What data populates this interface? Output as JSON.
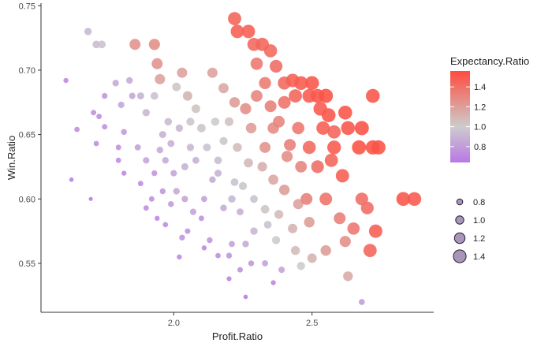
{
  "chart_data": {
    "type": "scatter",
    "xlabel": "Profit.Ratio",
    "ylabel": "Win.Ratio",
    "xlim": [
      1.52,
      2.94
    ],
    "ylim": [
      0.512,
      0.752
    ],
    "x_ticks": [
      2.0,
      2.5
    ],
    "x_tick_labels": [
      "2.0",
      "2.5"
    ],
    "y_ticks": [
      0.55,
      0.6,
      0.65,
      0.7,
      0.75
    ],
    "y_tick_labels": [
      "0.55",
      "0.60",
      "0.65",
      "0.70",
      "0.75"
    ],
    "grid": false,
    "color_legend": {
      "title": "Expectancy.Ratio",
      "range": [
        0.64,
        1.56
      ],
      "ticks": [
        0.8,
        1.0,
        1.2,
        1.4
      ],
      "tick_labels": [
        "0.8",
        "1.0",
        "1.2",
        "1.4"
      ],
      "colors": {
        "low": "#BA77E6",
        "mid": "#CCCCCC",
        "high": "#FF4B3E"
      },
      "placement": "right"
    },
    "size_legend": {
      "values": [
        0.8,
        1.0,
        1.2,
        1.4
      ],
      "labels": [
        "0.8",
        "1.0",
        "1.2",
        "1.4"
      ],
      "placement": "right"
    },
    "points": [
      [
        1.61,
        0.692,
        0.72
      ],
      [
        1.63,
        0.615,
        0.66
      ],
      [
        1.65,
        0.654,
        0.74
      ],
      [
        1.69,
        0.73,
        0.92
      ],
      [
        1.7,
        0.6,
        0.62
      ],
      [
        1.72,
        0.72,
        0.94
      ],
      [
        1.73,
        0.664,
        0.74
      ],
      [
        1.74,
        0.72,
        0.96
      ],
      [
        1.71,
        0.667,
        0.76
      ],
      [
        1.75,
        0.68,
        0.78
      ],
      [
        1.75,
        0.656,
        0.76
      ],
      [
        1.72,
        0.643,
        0.74
      ],
      [
        1.79,
        0.69,
        0.86
      ],
      [
        1.81,
        0.673,
        0.84
      ],
      [
        1.8,
        0.64,
        0.76
      ],
      [
        1.8,
        0.63,
        0.74
      ],
      [
        1.82,
        0.62,
        0.72
      ],
      [
        1.82,
        0.652,
        0.8
      ],
      [
        1.84,
        0.692,
        0.86
      ],
      [
        1.85,
        0.68,
        0.84
      ],
      [
        1.86,
        0.72,
        1.24
      ],
      [
        1.88,
        0.68,
        0.9
      ],
      [
        1.9,
        0.667,
        0.92
      ],
      [
        1.93,
        0.72,
        1.26
      ],
      [
        1.94,
        0.705,
        1.24
      ],
      [
        1.95,
        0.693,
        1.18
      ],
      [
        1.93,
        0.68,
        0.96
      ],
      [
        1.87,
        0.64,
        0.82
      ],
      [
        1.9,
        0.63,
        0.84
      ],
      [
        1.93,
        0.62,
        0.78
      ],
      [
        1.88,
        0.612,
        0.74
      ],
      [
        1.92,
        0.6,
        0.76
      ],
      [
        1.9,
        0.593,
        0.74
      ],
      [
        1.94,
        0.585,
        0.72
      ],
      [
        1.96,
        0.606,
        0.78
      ],
      [
        1.97,
        0.63,
        0.86
      ],
      [
        1.98,
        0.66,
        0.94
      ],
      [
        2.01,
        0.687,
        1.02
      ],
      [
        2.03,
        0.698,
        1.18
      ],
      [
        2.05,
        0.68,
        1.1
      ],
      [
        2.08,
        0.67,
        1.04
      ],
      [
        2.1,
        0.655,
        1.02
      ],
      [
        2.06,
        0.64,
        0.92
      ],
      [
        2.04,
        0.625,
        0.9
      ],
      [
        2.01,
        0.606,
        0.86
      ],
      [
        1.99,
        0.596,
        0.8
      ],
      [
        1.97,
        0.58,
        0.74
      ],
      [
        2.04,
        0.6,
        0.84
      ],
      [
        2.07,
        0.59,
        0.84
      ],
      [
        2.03,
        0.57,
        0.78
      ],
      [
        2.05,
        0.575,
        0.76
      ],
      [
        2.13,
        0.568,
        0.78
      ],
      [
        2.11,
        0.6,
        0.82
      ],
      [
        2.14,
        0.615,
        0.86
      ],
      [
        2.16,
        0.63,
        0.94
      ],
      [
        2.18,
        0.645,
        0.98
      ],
      [
        2.2,
        0.66,
        1.04
      ],
      [
        2.14,
        0.698,
        1.18
      ],
      [
        2.18,
        0.686,
        1.16
      ],
      [
        2.22,
        0.675,
        1.2
      ],
      [
        2.22,
        0.74,
        1.44
      ],
      [
        2.23,
        0.73,
        1.46
      ],
      [
        2.27,
        0.73,
        1.46
      ],
      [
        2.29,
        0.72,
        1.42
      ],
      [
        2.32,
        0.72,
        1.44
      ],
      [
        2.35,
        0.715,
        1.42
      ],
      [
        2.3,
        0.705,
        1.36
      ],
      [
        2.33,
        0.69,
        1.34
      ],
      [
        2.37,
        0.703,
        1.4
      ],
      [
        2.4,
        0.69,
        1.42
      ],
      [
        2.43,
        0.692,
        1.46
      ],
      [
        2.46,
        0.69,
        1.48
      ],
      [
        2.5,
        0.69,
        1.5
      ],
      [
        2.44,
        0.68,
        1.44
      ],
      [
        2.49,
        0.68,
        1.48
      ],
      [
        2.52,
        0.68,
        1.5
      ],
      [
        2.55,
        0.68,
        1.52
      ],
      [
        2.56,
        0.665,
        1.5
      ],
      [
        2.62,
        0.667,
        1.5
      ],
      [
        2.68,
        0.655,
        1.52
      ],
      [
        2.72,
        0.68,
        1.5
      ],
      [
        2.67,
        0.64,
        1.52
      ],
      [
        2.72,
        0.64,
        1.52
      ],
      [
        2.63,
        0.655,
        1.5
      ],
      [
        2.58,
        0.64,
        1.48
      ],
      [
        2.54,
        0.655,
        1.46
      ],
      [
        2.49,
        0.64,
        1.42
      ],
      [
        2.45,
        0.655,
        1.36
      ],
      [
        2.42,
        0.642,
        1.32
      ],
      [
        2.38,
        0.66,
        1.3
      ],
      [
        2.33,
        0.64,
        1.24
      ],
      [
        2.28,
        0.655,
        1.2
      ],
      [
        2.26,
        0.67,
        1.26
      ],
      [
        2.3,
        0.68,
        1.3
      ],
      [
        2.35,
        0.672,
        1.32
      ],
      [
        2.4,
        0.675,
        1.38
      ],
      [
        2.36,
        0.655,
        1.28
      ],
      [
        2.41,
        0.633,
        1.26
      ],
      [
        2.46,
        0.625,
        1.3
      ],
      [
        2.52,
        0.625,
        1.4
      ],
      [
        2.57,
        0.63,
        1.44
      ],
      [
        2.61,
        0.618,
        1.46
      ],
      [
        2.55,
        0.6,
        1.38
      ],
      [
        2.48,
        0.6,
        1.32
      ],
      [
        2.4,
        0.607,
        1.2
      ],
      [
        2.36,
        0.615,
        1.16
      ],
      [
        2.32,
        0.625,
        1.12
      ],
      [
        2.27,
        0.628,
        1.08
      ],
      [
        2.23,
        0.64,
        1.06
      ],
      [
        2.25,
        0.61,
        0.98
      ],
      [
        2.21,
        0.6,
        0.92
      ],
      [
        2.18,
        0.593,
        0.86
      ],
      [
        2.24,
        0.59,
        0.88
      ],
      [
        2.29,
        0.6,
        0.96
      ],
      [
        2.33,
        0.592,
        1.02
      ],
      [
        2.38,
        0.588,
        1.06
      ],
      [
        2.43,
        0.577,
        1.1
      ],
      [
        2.49,
        0.582,
        1.2
      ],
      [
        2.45,
        0.596,
        1.18
      ],
      [
        2.6,
        0.585,
        1.32
      ],
      [
        2.65,
        0.577,
        1.36
      ],
      [
        2.68,
        0.6,
        1.4
      ],
      [
        2.7,
        0.593,
        1.4
      ],
      [
        2.73,
        0.575,
        1.46
      ],
      [
        2.71,
        0.56,
        1.44
      ],
      [
        2.62,
        0.567,
        1.26
      ],
      [
        2.55,
        0.56,
        1.2
      ],
      [
        2.44,
        0.56,
        1.06
      ],
      [
        2.37,
        0.568,
        1.0
      ],
      [
        2.34,
        0.58,
        0.96
      ],
      [
        2.29,
        0.575,
        0.92
      ],
      [
        2.26,
        0.565,
        0.86
      ],
      [
        2.21,
        0.565,
        0.82
      ],
      [
        2.2,
        0.556,
        0.78
      ],
      [
        2.24,
        0.545,
        0.76
      ],
      [
        2.28,
        0.55,
        0.78
      ],
      [
        2.33,
        0.55,
        0.82
      ],
      [
        2.39,
        0.545,
        0.84
      ],
      [
        2.46,
        0.548,
        1.0
      ],
      [
        2.5,
        0.554,
        1.1
      ],
      [
        2.63,
        0.54,
        1.14
      ],
      [
        2.68,
        0.52,
        0.8
      ],
      [
        2.36,
        0.535,
        0.72
      ],
      [
        2.2,
        0.538,
        0.7
      ],
      [
        2.26,
        0.524,
        0.66
      ],
      [
        2.02,
        0.555,
        0.72
      ],
      [
        2.16,
        0.556,
        0.74
      ],
      [
        2.11,
        0.562,
        0.72
      ],
      [
        2.1,
        0.585,
        0.76
      ],
      [
        1.99,
        0.643,
        0.88
      ],
      [
        2.02,
        0.655,
        0.92
      ],
      [
        2.06,
        0.66,
        0.98
      ],
      [
        2.12,
        0.64,
        0.96
      ],
      [
        2.15,
        0.66,
        1.0
      ],
      [
        1.96,
        0.65,
        0.9
      ],
      [
        2.83,
        0.6,
        1.5
      ],
      [
        2.87,
        0.6,
        1.48
      ],
      [
        2.74,
        0.64,
        1.52
      ],
      [
        2.58,
        0.652,
        1.44
      ],
      [
        2.53,
        0.67,
        1.48
      ],
      [
        2.22,
        0.613,
        0.96
      ],
      [
        2.16,
        0.62,
        0.9
      ],
      [
        2.08,
        0.63,
        0.88
      ],
      [
        2.0,
        0.62,
        0.84
      ],
      [
        1.95,
        0.638,
        0.86
      ]
    ]
  }
}
